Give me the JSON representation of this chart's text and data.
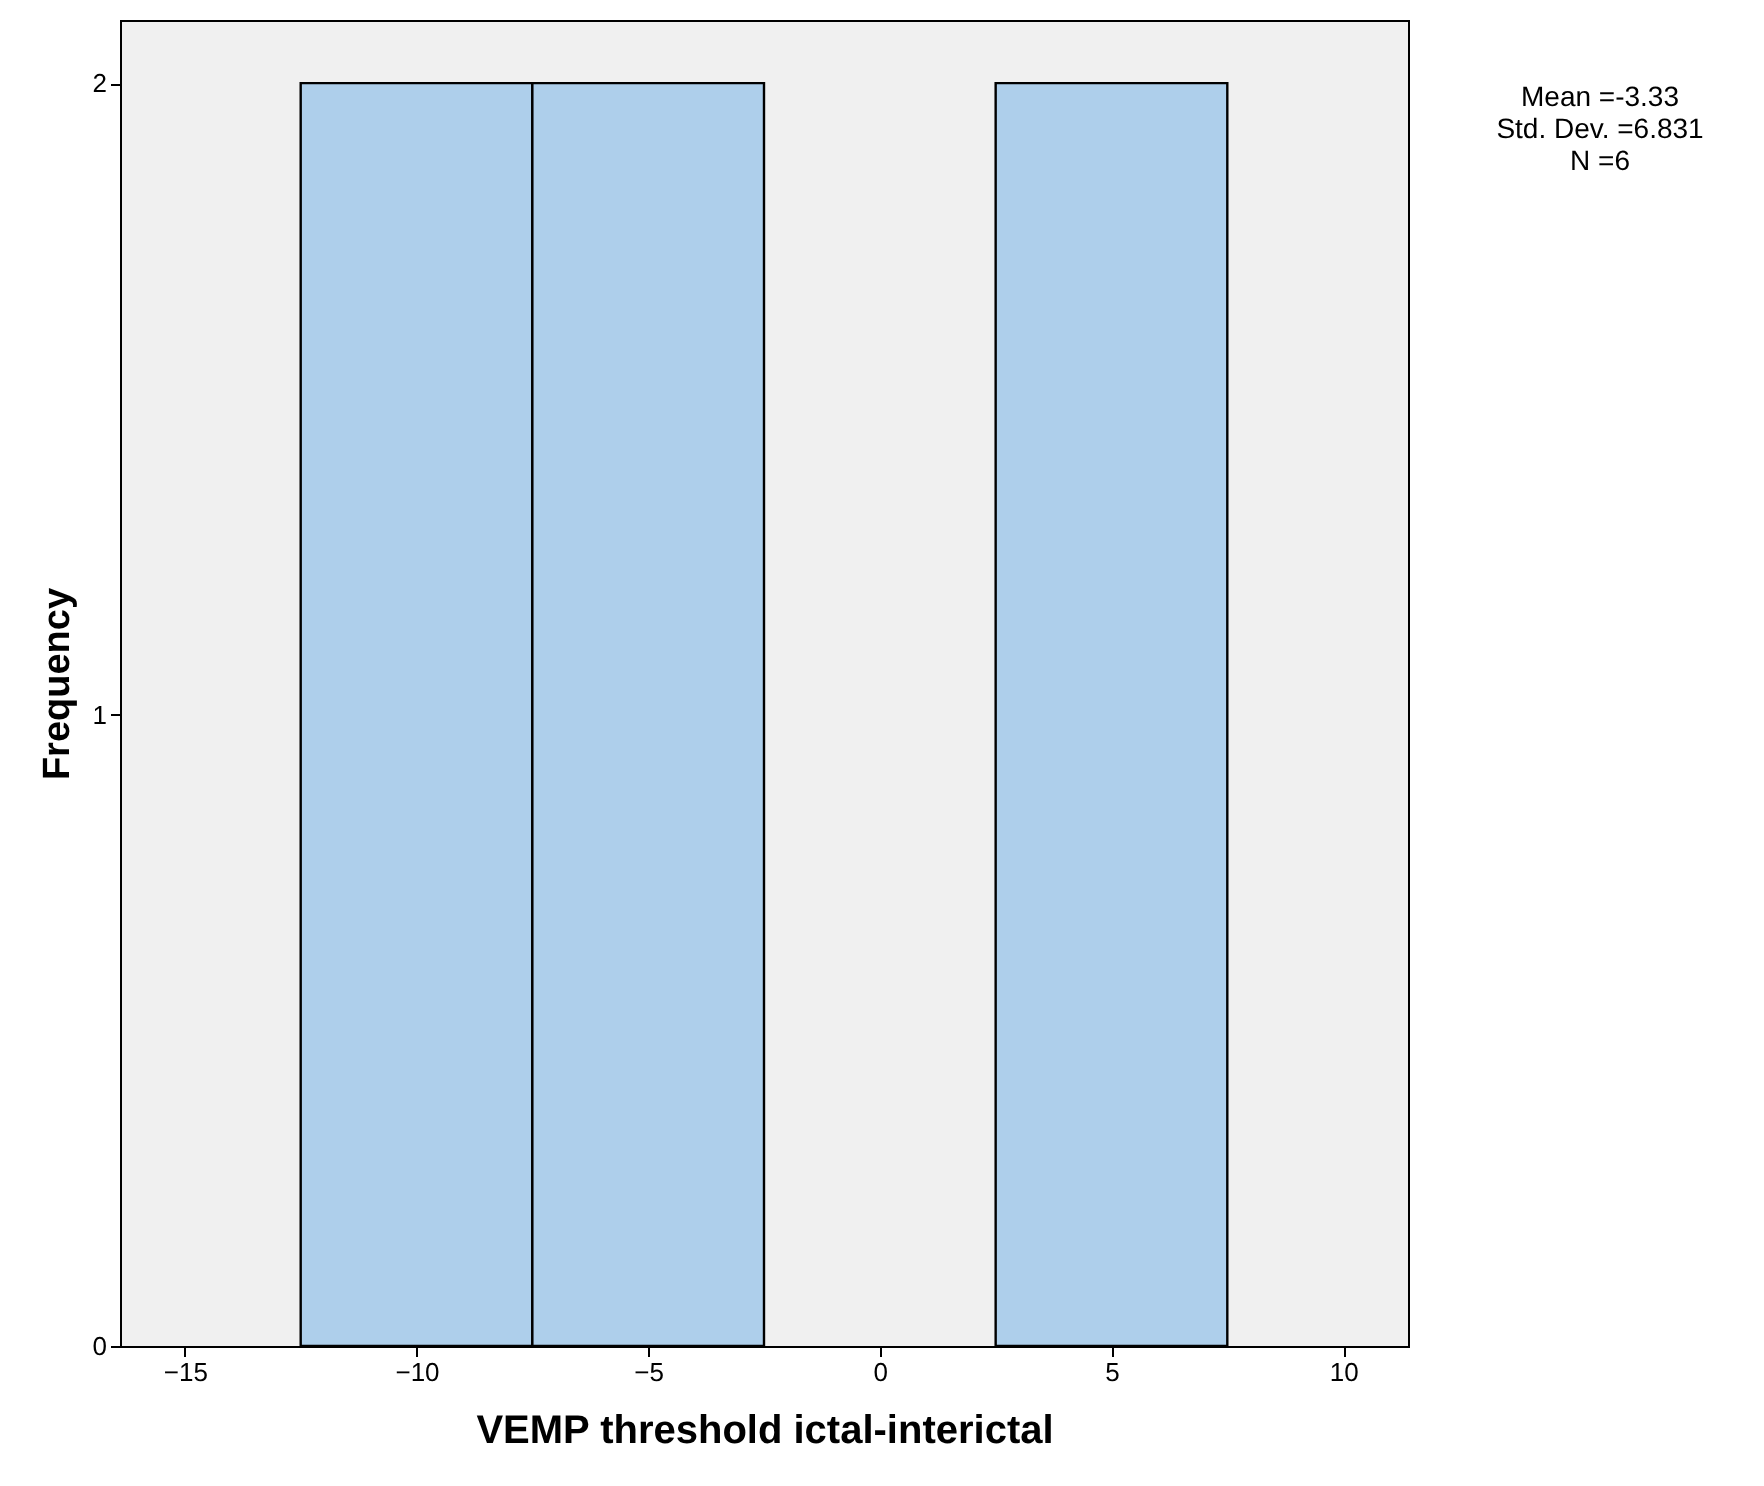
{
  "chart_data": {
    "type": "histogram",
    "xlabel": "VEMP threshold ictal-interictal",
    "ylabel": "Frequency",
    "bins": [
      -12.5,
      -7.5,
      -2.5,
      2.5,
      7.5
    ],
    "values": [
      2,
      2,
      0,
      2
    ],
    "color": "#aecfeb",
    "xlim": [
      -16.4,
      11.4
    ],
    "xticks": [
      -15,
      -10,
      -5,
      0,
      5,
      10
    ],
    "ylim": [
      0,
      2.1
    ],
    "yticks": [
      0,
      1,
      2
    ],
    "annotations": [
      "Mean =-3.33",
      "Std. Dev. =6.831",
      "N =6"
    ]
  }
}
